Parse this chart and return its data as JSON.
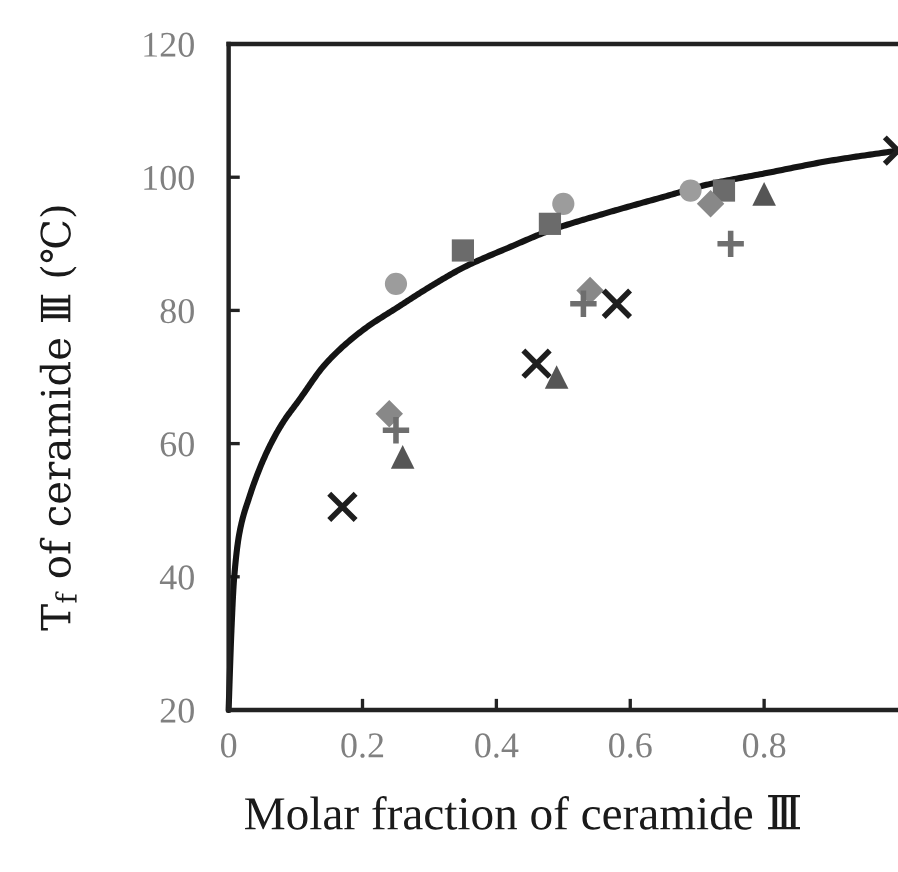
{
  "chart_data": {
    "type": "scatter",
    "xlabel": "Molar fraction of ceramide Ⅲ",
    "ylabel": "T$_{f}$ of ceramide Ⅲ (℃)",
    "xlim": [
      0,
      1
    ],
    "ylim": [
      20,
      120
    ],
    "xticks": [
      0,
      0.2,
      0.4,
      0.6,
      0.8
    ],
    "yticks": [
      20,
      40,
      60,
      80,
      100,
      120
    ],
    "grid": false,
    "series": [
      {
        "color": "#9c9c9c",
        "marker": "circle",
        "x": [
          0.25,
          0.5,
          0.69
        ],
        "values": [
          84,
          96,
          98
        ]
      },
      {
        "color": "#6b6b6b",
        "marker": "square",
        "x": [
          0.35,
          0.48,
          0.74
        ],
        "values": [
          89,
          93,
          98
        ]
      },
      {
        "color": "#888888",
        "marker": "diamond",
        "x": [
          0.24,
          0.54,
          0.72
        ],
        "values": [
          64.5,
          83,
          96
        ]
      },
      {
        "color": "#6e6e6e",
        "marker": "plus",
        "x": [
          0.25,
          0.53,
          0.75
        ],
        "values": [
          62,
          81,
          90
        ]
      },
      {
        "color": "#555555",
        "marker": "triangle",
        "x": [
          0.26,
          0.49,
          0.8
        ],
        "values": [
          58,
          70,
          97.5
        ]
      },
      {
        "color": "#1e1e1e",
        "marker": "cross",
        "x": [
          0.17,
          0.46,
          0.58,
          1.0
        ],
        "values": [
          50.5,
          72,
          81,
          104
        ]
      },
      {
        "type": "line",
        "color": "#141414",
        "marker": "none",
        "line_style": "solid",
        "x": [
          0,
          0.002,
          0.004,
          0.008,
          0.016,
          0.031,
          0.056,
          0.08,
          0.105,
          0.145,
          0.2,
          0.253,
          0.3,
          0.352,
          0.42,
          0.48,
          0.56,
          0.648,
          0.72,
          0.797,
          0.9,
          1.0
        ],
        "values": [
          20,
          26,
          31.5,
          39.5,
          46.5,
          52,
          58.5,
          63,
          66.5,
          72,
          77,
          80.5,
          83.5,
          86.5,
          89.5,
          92,
          94.5,
          97,
          99,
          100.5,
          102.5,
          104
        ]
      }
    ]
  }
}
